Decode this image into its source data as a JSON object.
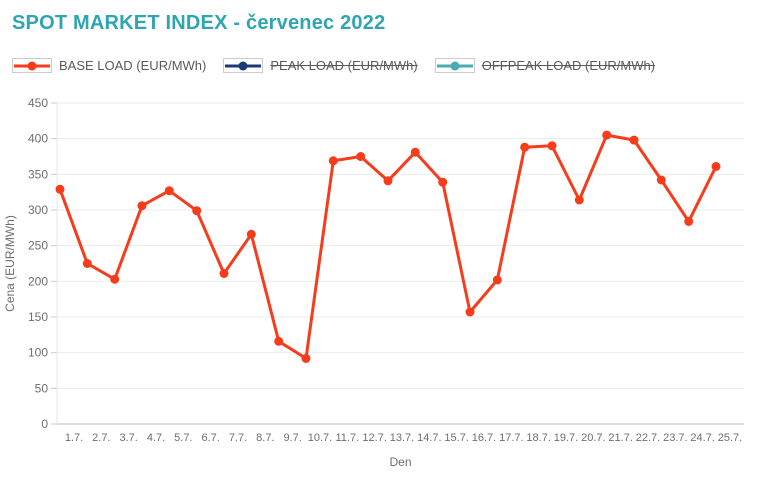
{
  "page": {
    "title": "SPOT MARKET INDEX - červenec 2022",
    "title_color": "#2ea5b2"
  },
  "legend": {
    "items": [
      {
        "id": "base-load",
        "label": "BASE LOAD (EUR/MWh)",
        "color": "#f73c1b",
        "active": true
      },
      {
        "id": "peak-load",
        "label": "PEAK LOAD (EUR/MWh)",
        "color": "#1b3b77",
        "active": false
      },
      {
        "id": "offpeak-load",
        "label": "OFFPEAK LOAD (EUR/MWh)",
        "color": "#4aabb3",
        "active": false
      }
    ]
  },
  "axis": {
    "y_ticks": [
      "450",
      "400",
      "350",
      "300",
      "250",
      "200",
      "150",
      "100",
      "50",
      "0"
    ]
  },
  "chart_data": {
    "type": "line",
    "title": "SPOT MARKET INDEX - červenec 2022",
    "xlabel": "Den",
    "ylabel": "Cena (EUR/MWh)",
    "ylim": [
      0,
      450
    ],
    "ytick_step": 50,
    "grid": "horizontal",
    "legend_position": "top",
    "categories": [
      "1.7.",
      "2.7.",
      "3.7.",
      "4.7.",
      "5.7.",
      "6.7.",
      "7.7.",
      "8.7.",
      "9.7.",
      "10.7.",
      "11.7.",
      "12.7.",
      "13.7.",
      "14.7.",
      "15.7.",
      "16.7.",
      "17.7.",
      "18.7.",
      "19.7.",
      "20.7.",
      "21.7.",
      "22.7.",
      "23.7.",
      "24.7.",
      "25.7."
    ],
    "series": [
      {
        "name": "BASE LOAD (EUR/MWh)",
        "color": "#f73c1b",
        "visible": true,
        "values": [
          329,
          225,
          203,
          306,
          327,
          299,
          211,
          266,
          116,
          92,
          369,
          375,
          341,
          381,
          339,
          157,
          202,
          388,
          390,
          314,
          405,
          398,
          342,
          284,
          361
        ]
      },
      {
        "name": "PEAK LOAD (EUR/MWh)",
        "color": "#1b3b77",
        "visible": false,
        "values": []
      },
      {
        "name": "OFFPEAK LOAD (EUR/MWh)",
        "color": "#4aabb3",
        "visible": false,
        "values": []
      }
    ]
  }
}
